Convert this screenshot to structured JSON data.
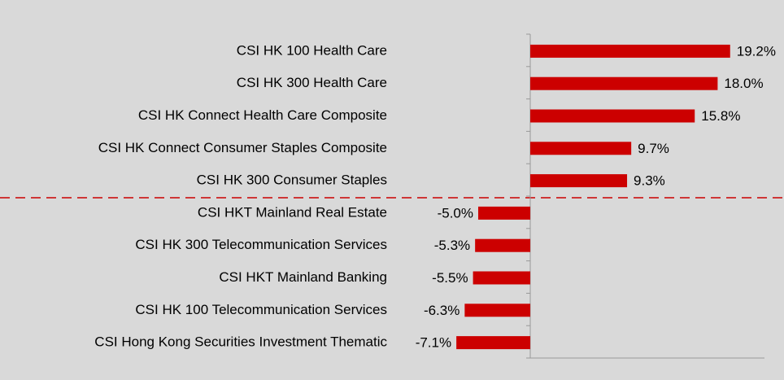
{
  "chart_data": {
    "type": "bar",
    "orientation": "horizontal",
    "categories": [
      "CSI HK 100 Health Care",
      "CSI HK 300 Health Care",
      "CSI HK Connect Health Care Composite",
      "CSI HK Connect Consumer Staples Composite",
      "CSI HK 300 Consumer Staples",
      "CSI HKT Mainland Real Estate",
      "CSI HK 300 Telecommunication Services",
      "CSI HKT Mainland Banking",
      "CSI HK 100 Telecommunication Services",
      "CSI Hong Kong Securities Investment Thematic"
    ],
    "values": [
      19.2,
      18.0,
      15.8,
      9.7,
      9.3,
      -5.0,
      -5.3,
      -5.5,
      -6.3,
      -7.1
    ],
    "value_labels": [
      "19.2%",
      "18.0%",
      "15.8%",
      "9.7%",
      "9.3%",
      "-5.0%",
      "-5.3%",
      "-5.5%",
      "-6.3%",
      "-7.1%"
    ],
    "color": "#cc0000"
  }
}
